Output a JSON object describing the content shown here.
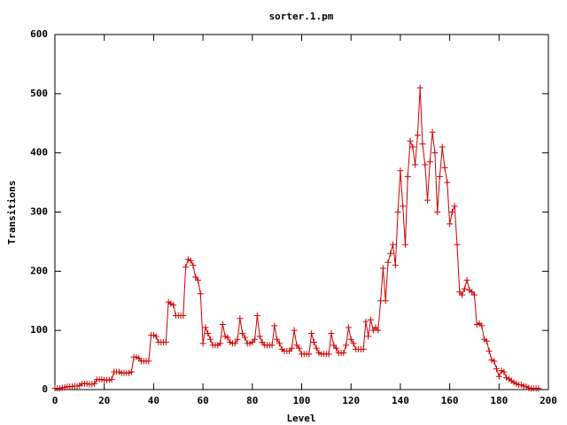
{
  "chart_data": {
    "type": "line",
    "title": "sorter.1.pm",
    "x_label": "Level",
    "y_label": "Transitions",
    "x": [
      0,
      1,
      2,
      3,
      4,
      5,
      6,
      7,
      8,
      9,
      10,
      11,
      12,
      13,
      14,
      15,
      16,
      17,
      18,
      19,
      20,
      21,
      22,
      23,
      24,
      25,
      26,
      27,
      28,
      29,
      30,
      31,
      32,
      33,
      34,
      35,
      36,
      37,
      38,
      39,
      40,
      41,
      42,
      43,
      44,
      45,
      46,
      47,
      48,
      49,
      50,
      51,
      52,
      53,
      54,
      55,
      56,
      57,
      58,
      59,
      60,
      61,
      62,
      63,
      64,
      65,
      66,
      67,
      68,
      69,
      70,
      71,
      72,
      73,
      74,
      75,
      76,
      77,
      78,
      79,
      80,
      81,
      82,
      83,
      84,
      85,
      86,
      87,
      88,
      89,
      90,
      91,
      92,
      93,
      94,
      95,
      96,
      97,
      98,
      99,
      100,
      101,
      102,
      103,
      104,
      105,
      106,
      107,
      108,
      109,
      110,
      111,
      112,
      113,
      114,
      115,
      116,
      117,
      118,
      119,
      120,
      121,
      122,
      123,
      124,
      125,
      126,
      127,
      128,
      129,
      130,
      131,
      132,
      133,
      134,
      135,
      136,
      137,
      138,
      139,
      140,
      141,
      142,
      143,
      144,
      145,
      146,
      147,
      148,
      149,
      150,
      151,
      152,
      153,
      154,
      155,
      156,
      157,
      158,
      159,
      160,
      161,
      162,
      163,
      164,
      165,
      166,
      167,
      168,
      169,
      170,
      171,
      172,
      173,
      174,
      175,
      176,
      177,
      178,
      179,
      180,
      181,
      182,
      183,
      184,
      185,
      186,
      187,
      188,
      189,
      190,
      191,
      192,
      193,
      194,
      195,
      196
    ],
    "series": [
      {
        "color": "#cc0000",
        "values": [
          2,
          2,
          2,
          3,
          4,
          5,
          5,
          5,
          6,
          6,
          7,
          10,
          10,
          10,
          9,
          9,
          10,
          17,
          17,
          17,
          16,
          16,
          16,
          17,
          30,
          30,
          30,
          28,
          28,
          28,
          28,
          30,
          55,
          55,
          53,
          48,
          48,
          48,
          48,
          92,
          92,
          90,
          80,
          80,
          80,
          80,
          148,
          145,
          143,
          125,
          125,
          125,
          125,
          207,
          220,
          218,
          210,
          190,
          185,
          162,
          78,
          105,
          95,
          85,
          75,
          75,
          75,
          78,
          110,
          90,
          88,
          80,
          78,
          78,
          85,
          120,
          95,
          88,
          78,
          78,
          80,
          85,
          125,
          90,
          80,
          75,
          75,
          75,
          75,
          108,
          85,
          78,
          68,
          65,
          65,
          65,
          70,
          100,
          75,
          70,
          60,
          60,
          60,
          60,
          95,
          80,
          70,
          62,
          60,
          60,
          60,
          60,
          95,
          75,
          70,
          62,
          62,
          62,
          75,
          105,
          85,
          78,
          68,
          68,
          68,
          68,
          115,
          90,
          118,
          100,
          105,
          100,
          150,
          205,
          150,
          215,
          230,
          245,
          210,
          300,
          370,
          310,
          245,
          360,
          420,
          410,
          380,
          430,
          510,
          415,
          380,
          320,
          385,
          435,
          400,
          300,
          360,
          410,
          375,
          350,
          280,
          300,
          310,
          245,
          165,
          160,
          170,
          185,
          168,
          165,
          160,
          110,
          112,
          108,
          85,
          82,
          65,
          50,
          48,
          35,
          22,
          32,
          30,
          20,
          18,
          15,
          12,
          10,
          8,
          8,
          6,
          5,
          3,
          2,
          2,
          2,
          2
        ]
      }
    ],
    "xlim": [
      0,
      200
    ],
    "xticks": [
      0,
      20,
      40,
      60,
      80,
      100,
      120,
      140,
      160,
      180,
      200
    ],
    "ylim": [
      0,
      600
    ],
    "yticks": [
      0,
      100,
      200,
      300,
      400,
      500,
      600
    ]
  }
}
